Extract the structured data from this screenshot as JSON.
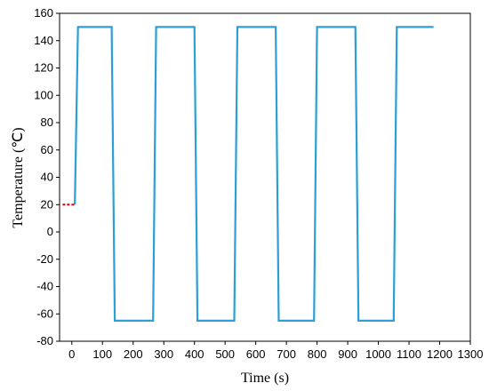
{
  "chart_data": {
    "type": "line",
    "title": "",
    "xlabel": "Time (s)",
    "ylabel": "Temperature (℃)",
    "xlim": [
      -40,
      1300
    ],
    "ylim": [
      -80,
      160
    ],
    "x_ticks": [
      0,
      100,
      200,
      300,
      400,
      500,
      600,
      700,
      800,
      900,
      1000,
      1100,
      1200,
      1300
    ],
    "x_tick_labels": [
      "0",
      "100",
      "200",
      "300",
      "400",
      "500",
      "600",
      "700",
      "800",
      "900",
      "1000",
      "1100",
      "1200",
      "1300"
    ],
    "y_ticks": [
      -80,
      -60,
      -40,
      -20,
      0,
      20,
      40,
      60,
      80,
      100,
      120,
      140,
      160
    ],
    "y_tick_labels": [
      "-80",
      "-60",
      "-40",
      "-20",
      "0",
      "20",
      "40",
      "60",
      "80",
      "100",
      "120",
      "140",
      "160"
    ],
    "grid": false,
    "series": [
      {
        "color": "#2a9fd8",
        "x": [
          10,
          20,
          130,
          140,
          165,
          265,
          275,
          300,
          400,
          410,
          440,
          530,
          540,
          565,
          665,
          675,
          700,
          790,
          800,
          825,
          925,
          935,
          960,
          1050,
          1060,
          1180
        ],
        "y": [
          20,
          150,
          150,
          -65,
          -65,
          -65,
          150,
          150,
          150,
          -65,
          -65,
          -65,
          150,
          150,
          150,
          -65,
          -65,
          -65,
          150,
          150,
          150,
          -65,
          -65,
          -65,
          150,
          150
        ]
      },
      {
        "color": "#d40000",
        "style": "dotted",
        "x": [
          -30,
          10
        ],
        "y": [
          20,
          20
        ]
      }
    ]
  }
}
